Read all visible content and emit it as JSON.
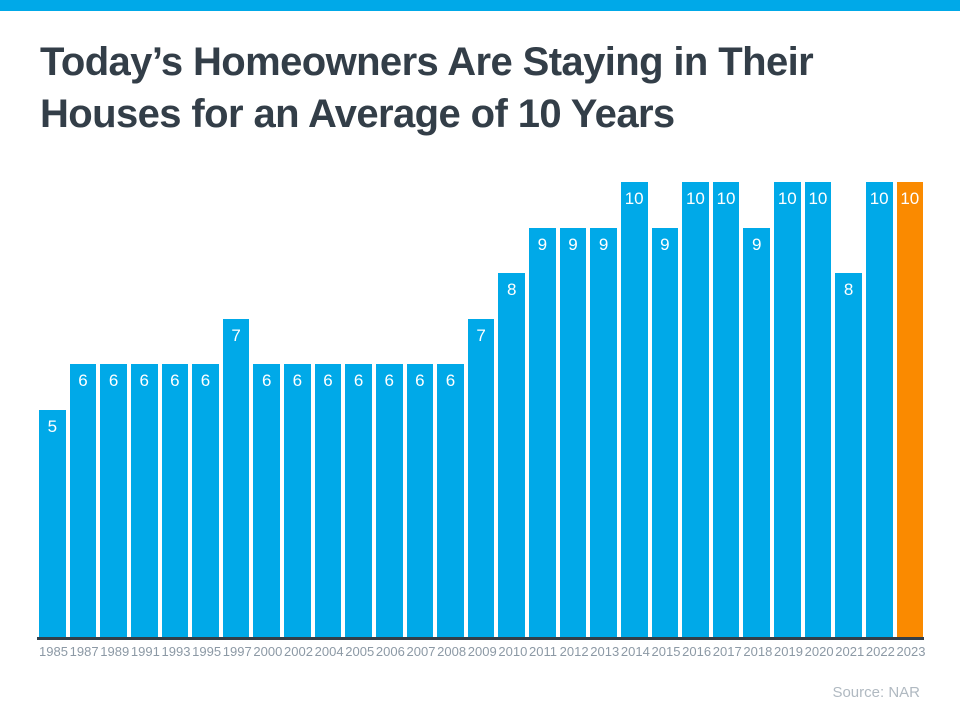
{
  "colors": {
    "background": "#FFFFFF",
    "accent_blue": "#00A9E8",
    "highlight_orange": "#FA8A00",
    "title_text": "#333E48",
    "axis_line": "#333E48",
    "tick_label_text": "#8C99A5",
    "source_text": "#B0B9C1",
    "bar_value_text": "#FFFFFF"
  },
  "chart_data": {
    "type": "bar",
    "title": "Today’s Homeowners Are Staying in Their Houses for an Average of 10 Years",
    "categories": [
      "1985",
      "1987",
      "1989",
      "1991",
      "1993",
      "1995",
      "1997",
      "2000",
      "2002",
      "2004",
      "2005",
      "2006",
      "2007",
      "2008",
      "2009",
      "2010",
      "2011",
      "2012",
      "2013",
      "2014",
      "2015",
      "2016",
      "2017",
      "2018",
      "2019",
      "2020",
      "2021",
      "2022",
      "2023"
    ],
    "values": [
      5,
      6,
      6,
      6,
      6,
      6,
      7,
      6,
      6,
      6,
      6,
      6,
      6,
      6,
      7,
      8,
      9,
      9,
      9,
      10,
      9,
      10,
      10,
      9,
      10,
      10,
      8,
      10,
      10
    ],
    "highlight_index": 28,
    "xlabel": "",
    "ylabel": "",
    "ylim": [
      0,
      10
    ],
    "grid": false,
    "legend": false,
    "value_labels_shown": true,
    "source": "Source: NAR"
  }
}
